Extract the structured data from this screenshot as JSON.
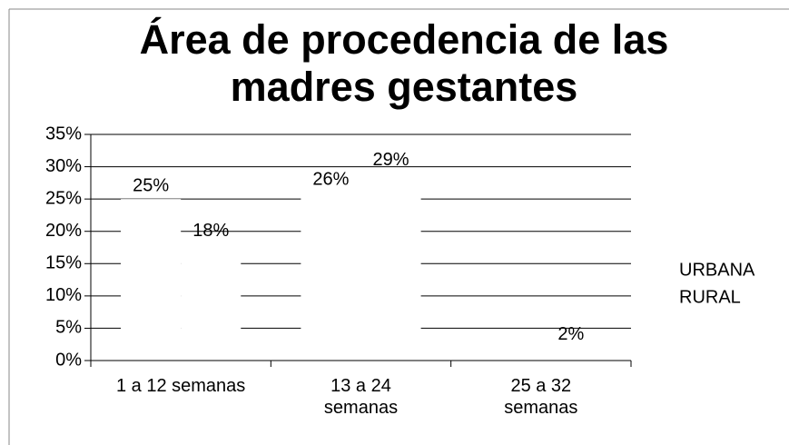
{
  "chart_data": {
    "type": "bar",
    "title": "Área de procedencia de las madres gestantes",
    "categories": [
      "1 a 12 semanas",
      "13 a 24 semanas",
      "25 a 32 semanas"
    ],
    "series": [
      {
        "name": "URBANA",
        "color": "#ffffff",
        "values": [
          25,
          26,
          0
        ],
        "value_labels": [
          "25%",
          "26%",
          null
        ]
      },
      {
        "name": "RURAL",
        "color": "#ffffff",
        "values": [
          18,
          29,
          2
        ],
        "value_labels": [
          "18%",
          "29%",
          "2%"
        ]
      }
    ],
    "ylim": [
      0,
      35
    ],
    "yticks": [
      {
        "value": 0,
        "label": "0%"
      },
      {
        "value": 5,
        "label": "5%"
      },
      {
        "value": 10,
        "label": "10%"
      },
      {
        "value": 15,
        "label": "15%"
      },
      {
        "value": 20,
        "label": "20%"
      },
      {
        "value": 25,
        "label": "25%"
      },
      {
        "value": 30,
        "label": "30%"
      },
      {
        "value": 35,
        "label": "35%"
      }
    ],
    "grid": true,
    "legend": "right"
  }
}
